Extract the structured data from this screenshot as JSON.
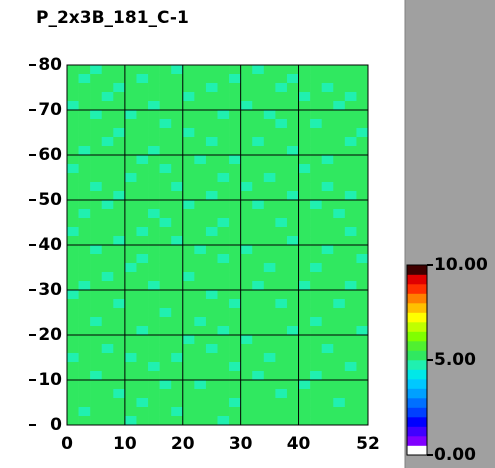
{
  "chart_data": {
    "type": "heatmap",
    "title": "P_2x3B_181_C-1",
    "xlim": [
      0,
      52
    ],
    "ylim": [
      0,
      80
    ],
    "xticks": [
      0,
      10,
      20,
      30,
      40,
      52
    ],
    "yticks": [
      0,
      10,
      20,
      30,
      40,
      50,
      60,
      70,
      80
    ],
    "grid": true,
    "zlim": [
      0,
      10
    ],
    "zticks": [
      {
        "value": 0,
        "label": "0.00"
      },
      {
        "value": 5,
        "label": "5.00"
      },
      {
        "value": 10,
        "label": "10.00"
      }
    ],
    "colorscale": [
      "#ffffff",
      "#8000ff",
      "#4000ff",
      "#0000ff",
      "#0040ff",
      "#0070ff",
      "#00a0ff",
      "#00c8ff",
      "#00e8e8",
      "#20f0b0",
      "#30e860",
      "#50f030",
      "#80ff00",
      "#c0ff00",
      "#ffff00",
      "#ffc000",
      "#ff8000",
      "#ff3000",
      "#e00000",
      "#400000"
    ],
    "z": [
      [
        5.1,
        5.2,
        4.9,
        5.3,
        5.1,
        5.0,
        5.2,
        5.4,
        5.1,
        4.8,
        5.2,
        5.1,
        5.3,
        5.0,
        5.2,
        5.1,
        4.9,
        5.2,
        5.3,
        5.1,
        5.0,
        5.2,
        5.1,
        5.4,
        5.2,
        5.1
      ],
      [
        5.2,
        4.8,
        5.1,
        5.2,
        5.3,
        5.1,
        4.9,
        5.1,
        5.2,
        5.3,
        5.1,
        5.0,
        5.2,
        5.1,
        4.8,
        5.2,
        5.3,
        5.1,
        5.2,
        4.9,
        5.1,
        5.3,
        5.2,
        5.0,
        5.1,
        5.2
      ],
      [
        5.0,
        5.2,
        5.3,
        5.1,
        4.9,
        5.2,
        5.1,
        5.3,
        5.0,
        5.2,
        5.4,
        5.1,
        4.9,
        5.2,
        5.1,
        5.3,
        5.1,
        5.0,
        4.8,
        5.2,
        5.3,
        5.1,
        4.9,
        5.2,
        5.3,
        5.0
      ],
      [
        5.3,
        5.1,
        5.0,
        4.8,
        5.2,
        5.3,
        5.1,
        5.0,
        5.2,
        5.1,
        4.9,
        5.3,
        5.2,
        5.1,
        5.3,
        5.0,
        5.2,
        5.1,
        5.3,
        5.1,
        4.9,
        5.0,
        5.2,
        5.1,
        4.8,
        5.2
      ],
      [
        4.9,
        5.2,
        5.1,
        5.2,
        5.0,
        5.1,
        5.3,
        4.9,
        5.1,
        5.2,
        5.1,
        5.0,
        5.1,
        5.3,
        5.2,
        4.8,
        5.1,
        5.3,
        5.0,
        5.2,
        5.2,
        5.1,
        5.3,
        4.9,
        5.1,
        5.3
      ],
      [
        5.1,
        5.3,
        4.8,
        5.1,
        5.2,
        4.9,
        5.1,
        5.2,
        5.3,
        5.0,
        5.2,
        5.1,
        5.3,
        4.9,
        5.1,
        5.2,
        5.0,
        4.9,
        5.2,
        5.1,
        5.3,
        5.2,
        5.0,
        5.1,
        5.2,
        5.0
      ],
      [
        5.2,
        5.0,
        5.2,
        5.3,
        5.1,
        5.2,
        5.0,
        5.1,
        4.9,
        5.3,
        5.1,
        5.2,
        5.0,
        5.2,
        5.3,
        5.1,
        5.2,
        5.1,
        4.9,
        5.3,
        5.1,
        4.8,
        5.2,
        5.3,
        5.1,
        5.1
      ],
      [
        5.0,
        5.1,
        5.3,
        5.0,
        4.9,
        5.3,
        5.2,
        5.1,
        5.2,
        5.1,
        4.8,
        5.1,
        5.2,
        5.1,
        5.0,
        5.3,
        5.1,
        5.2,
        5.1,
        5.0,
        5.2,
        5.1,
        5.3,
        5.0,
        5.2,
        4.9
      ],
      [
        5.3,
        5.2,
        5.1,
        4.9,
        5.2,
        5.1,
        5.0,
        5.3,
        5.1,
        5.2,
        5.1,
        5.3,
        4.9,
        5.0,
        5.2,
        5.1,
        4.9,
        5.3,
        5.2,
        5.1,
        5.0,
        5.3,
        5.1,
        5.2,
        4.9,
        5.2
      ],
      [
        5.1,
        4.9,
        5.2,
        5.1,
        5.3,
        5.0,
        5.2,
        4.9,
        5.3,
        5.0,
        5.2,
        5.1,
        5.2,
        5.3,
        5.1,
        5.0,
        5.2,
        5.1,
        5.3,
        4.9,
        5.2,
        5.0,
        5.1,
        5.3,
        5.2,
        5.1
      ],
      [
        5.2,
        5.1,
        5.0,
        5.2,
        5.1,
        5.3,
        4.8,
        5.2,
        5.1,
        5.1,
        5.3,
        4.9,
        5.1,
        5.2,
        4.9,
        5.2,
        5.3,
        5.0,
        5.1,
        5.2,
        5.1,
        5.3,
        4.9,
        5.1,
        5.0,
        5.3
      ],
      [
        4.9,
        5.3,
        5.1,
        5.3,
        5.0,
        5.1,
        5.2,
        5.1,
        4.9,
        5.2,
        5.0,
        5.2,
        5.3,
        5.1,
        5.2,
        5.1,
        5.0,
        5.2,
        5.1,
        5.3,
        4.9,
        5.1,
        5.2,
        5.2,
        5.1,
        5.0
      ],
      [
        5.2,
        5.0,
        5.2,
        5.1,
        5.2,
        4.9,
        5.1,
        5.3,
        5.2,
        5.1,
        5.2,
        5.1,
        5.0,
        4.9,
        5.3,
        5.2,
        5.1,
        4.9,
        5.3,
        5.1,
        5.2,
        5.0,
        5.3,
        5.1,
        5.2,
        5.2
      ],
      [
        5.1,
        5.2,
        4.9,
        5.0,
        5.3,
        5.2,
        5.1,
        5.0,
        5.1,
        4.8,
        5.3,
        5.0,
        5.2,
        5.1,
        5.1,
        4.9,
        5.2,
        5.1,
        5.0,
        5.2,
        5.3,
        5.1,
        4.9,
        5.2,
        5.3,
        5.1
      ],
      [
        5.3,
        5.1,
        5.2,
        5.2,
        4.9,
        5.1,
        5.3,
        5.2,
        5.0,
        5.2,
        5.1,
        5.2,
        4.9,
        5.3,
        5.0,
        5.2,
        5.1,
        5.3,
        5.1,
        4.9,
        5.1,
        5.2,
        5.1,
        5.0,
        4.9,
        5.2
      ],
      [
        5.0,
        5.2,
        5.1,
        4.9,
        5.1,
        5.2,
        5.0,
        5.1,
        5.3,
        5.1,
        4.9,
        5.1,
        5.3,
        5.2,
        5.1,
        5.3,
        4.9,
        5.0,
        5.2,
        5.1,
        5.2,
        4.9,
        5.3,
        5.1,
        5.2,
        5.1
      ],
      [
        5.2,
        4.9,
        5.3,
        5.1,
        5.2,
        5.0,
        5.2,
        4.9,
        5.1,
        5.3,
        5.2,
        5.0,
        5.1,
        5.0,
        5.2,
        5.1,
        5.2,
        5.1,
        5.3,
        5.0,
        5.1,
        5.3,
        5.2,
        4.9,
        5.1,
        5.3
      ],
      [
        5.1,
        5.2,
        5.0,
        5.3,
        5.1,
        5.2,
        5.1,
        5.2,
        4.9,
        5.0,
        5.1,
        5.3,
        5.2,
        4.9,
        5.1,
        5.0,
        5.3,
        5.2,
        4.9,
        5.2,
        5.0,
        5.1,
        5.1,
        5.2,
        5.3,
        5.0
      ],
      [
        4.9,
        5.1,
        5.2,
        5.0,
        5.3,
        5.1,
        4.9,
        5.1,
        5.2,
        5.2,
        5.0,
        5.1,
        4.9,
        5.3,
        5.2,
        5.1,
        5.0,
        5.1,
        5.2,
        5.1,
        5.3,
        5.2,
        5.0,
        5.1,
        4.9,
        5.2
      ],
      [
        5.2,
        5.3,
        5.1,
        5.2,
        4.9,
        5.0,
        5.2,
        5.3,
        5.1,
        4.9,
        5.2,
        5.1,
        5.2,
        5.1,
        5.0,
        5.2,
        5.1,
        5.3,
        5.0,
        4.9,
        5.2,
        5.1,
        5.2,
        5.3,
        5.1,
        5.1
      ],
      [
        5.1,
        5.0,
        4.9,
        5.1,
        5.2,
        5.3,
        5.1,
        5.0,
        5.2,
        5.1,
        5.3,
        4.9,
        5.1,
        5.2,
        5.3,
        4.9,
        5.2,
        5.0,
        5.1,
        5.2,
        5.1,
        5.0,
        4.9,
        5.1,
        5.2,
        5.3
      ],
      [
        5.3,
        5.1,
        5.2,
        5.0,
        5.1,
        5.2,
        4.9,
        5.1,
        5.3,
        5.2,
        5.0,
        5.2,
        5.1,
        4.9,
        5.1,
        5.2,
        5.3,
        5.1,
        5.2,
        5.0,
        5.3,
        5.1,
        5.2,
        5.0,
        5.1,
        4.9
      ],
      [
        5.0,
        5.2,
        5.1,
        5.3,
        5.2,
        4.9,
        5.2,
        5.1,
        5.0,
        5.1,
        5.2,
        5.3,
        5.0,
        5.1,
        5.2,
        5.0,
        5.1,
        4.9,
        5.3,
        5.1,
        5.2,
        4.9,
        5.1,
        5.2,
        5.3,
        5.1
      ],
      [
        5.2,
        5.1,
        5.3,
        4.9,
        5.1,
        5.1,
        5.3,
        5.2,
        5.1,
        5.0,
        4.9,
        5.1,
        5.2,
        5.3,
        5.0,
        5.1,
        5.2,
        5.1,
        5.0,
        5.2,
        5.1,
        5.3,
        5.0,
        5.1,
        5.1,
        5.2
      ],
      [
        5.1,
        4.9,
        5.0,
        5.2,
        5.3,
        5.0,
        5.1,
        4.9,
        5.2,
        5.3,
        5.1,
        5.0,
        5.3,
        5.1,
        5.2,
        5.3,
        4.9,
        5.2,
        5.1,
        5.3,
        4.9,
        5.2,
        5.1,
        5.2,
        4.9,
        5.0
      ],
      [
        4.9,
        5.2,
        5.1,
        5.1,
        5.0,
        5.2,
        5.2,
        5.1,
        5.0,
        5.1,
        5.2,
        5.2,
        4.9,
        5.0,
        5.1,
        5.2,
        5.1,
        5.3,
        5.2,
        5.0,
        5.1,
        5.0,
        5.3,
        5.1,
        5.2,
        5.1
      ],
      [
        5.2,
        5.3,
        5.2,
        5.0,
        4.9,
        5.1,
        5.0,
        5.3,
        5.1,
        5.2,
        5.0,
        5.1,
        5.1,
        5.2,
        4.9,
        5.0,
        5.2,
        5.1,
        4.9,
        5.1,
        5.2,
        5.1,
        5.2,
        4.9,
        5.3,
        5.2
      ],
      [
        5.1,
        5.0,
        5.1,
        5.3,
        5.2,
        5.3,
        5.1,
        5.0,
        4.9,
        5.1,
        5.3,
        5.2,
        5.0,
        5.1,
        5.3,
        5.1,
        5.0,
        5.2,
        5.1,
        5.3,
        5.0,
        5.2,
        5.1,
        5.2,
        5.0,
        5.1
      ],
      [
        5.3,
        5.1,
        4.9,
        5.1,
        5.1,
        5.0,
        5.2,
        5.1,
        5.2,
        5.3,
        5.1,
        4.9,
        5.2,
        5.3,
        5.1,
        5.2,
        5.1,
        5.0,
        5.3,
        5.2,
        5.1,
        4.9,
        5.0,
        5.3,
        5.1,
        5.2
      ],
      [
        5.0,
        5.2,
        5.2,
        5.0,
        5.3,
        5.1,
        4.9,
        5.2,
        5.1,
        5.0,
        5.2,
        5.1,
        5.3,
        4.9,
        5.0,
        5.2,
        5.3,
        5.1,
        5.0,
        4.9,
        5.2,
        5.3,
        5.1,
        5.1,
        5.2,
        4.9
      ],
      [
        5.2,
        5.1,
        5.0,
        5.2,
        5.1,
        5.2,
        5.3,
        5.0,
        5.3,
        5.1,
        4.9,
        5.2,
        5.1,
        5.1,
        5.2,
        4.9,
        5.1,
        5.2,
        5.2,
        5.1,
        5.0,
        5.1,
        5.2,
        5.0,
        5.1,
        5.3
      ],
      [
        5.1,
        5.3,
        5.1,
        4.9,
        5.0,
        5.1,
        5.2,
        5.1,
        5.0,
        5.2,
        5.3,
        5.0,
        4.9,
        5.2,
        5.1,
        5.3,
        5.0,
        5.1,
        5.3,
        5.2,
        5.1,
        5.2,
        4.9,
        5.3,
        5.0,
        5.1
      ],
      [
        4.9,
        5.0,
        5.2,
        5.3,
        5.2,
        4.9,
        5.1,
        5.2,
        5.1,
        4.9,
        5.1,
        5.2,
        5.3,
        5.0,
        5.2,
        5.1,
        5.2,
        4.9,
        5.1,
        5.0,
        5.3,
        5.1,
        5.2,
        5.1,
        5.2,
        5.0
      ],
      [
        5.2,
        5.1,
        5.3,
        5.1,
        5.1,
        5.2,
        5.0,
        4.9,
        5.2,
        5.1,
        5.0,
        5.3,
        5.1,
        5.2,
        4.9,
        5.2,
        5.1,
        5.3,
        5.0,
        5.1,
        5.2,
        5.0,
        5.1,
        5.2,
        4.9,
        5.2
      ],
      [
        5.1,
        5.2,
        4.9,
        5.2,
        5.0,
        5.3,
        5.1,
        5.2,
        5.3,
        5.0,
        5.2,
        5.1,
        5.0,
        5.1,
        5.3,
        5.0,
        4.9,
        5.1,
        5.2,
        5.3,
        5.1,
        4.9,
        5.3,
        5.0,
        5.1,
        5.1
      ],
      [
        5.3,
        5.0,
        5.1,
        5.0,
        5.2,
        5.1,
        5.2,
        5.1,
        4.9,
        5.2,
        5.1,
        4.9,
        5.2,
        5.3,
        5.1,
        5.2,
        5.1,
        5.0,
        5.2,
        5.1,
        4.9,
        5.2,
        5.1,
        5.2,
        5.3,
        5.0
      ],
      [
        5.0,
        5.1,
        5.2,
        5.1,
        4.9,
        5.0,
        5.3,
        5.2,
        5.1,
        5.3,
        5.0,
        5.2,
        5.1,
        5.0,
        5.2,
        5.1,
        5.3,
        5.2,
        4.9,
        5.0,
        5.2,
        5.1,
        5.0,
        5.1,
        5.2,
        5.2
      ],
      [
        5.2,
        5.2,
        5.0,
        5.3,
        5.1,
        5.2,
        4.9,
        5.0,
        5.2,
        5.1,
        5.2,
        5.0,
        5.3,
        5.1,
        4.9,
        5.3,
        5.0,
        5.1,
        5.1,
        5.2,
        5.3,
        5.0,
        5.2,
        4.9,
        5.1,
        5.1
      ],
      [
        5.1,
        4.9,
        5.3,
        5.1,
        5.2,
        5.1,
        5.1,
        5.3,
        5.0,
        4.9,
        5.1,
        5.2,
        5.0,
        5.2,
        5.1,
        5.0,
        5.2,
        5.3,
        5.0,
        5.1,
        5.1,
        5.2,
        5.3,
        5.1,
        5.0,
        5.2
      ],
      [
        5.2,
        5.1,
        5.1,
        5.0,
        5.3,
        4.9,
        5.2,
        5.1,
        5.2,
        5.1,
        5.3,
        5.1,
        5.2,
        4.9,
        5.3,
        5.1,
        5.1,
        5.0,
        5.2,
        5.3,
        5.0,
        5.1,
        5.1,
        5.2,
        5.2,
        5.0
      ]
    ]
  }
}
